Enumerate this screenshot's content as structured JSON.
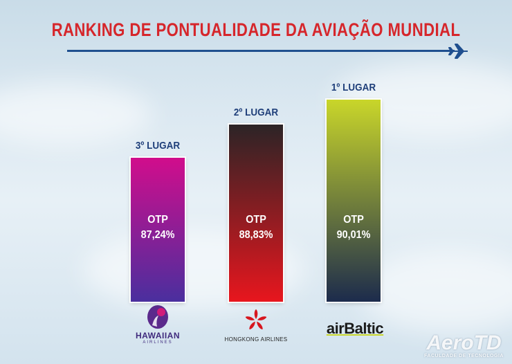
{
  "title": "RANKING DE PONTUALIDADE DA AVIAÇÃO MUNDIAL",
  "chart_data": {
    "type": "bar",
    "categories": [
      "Hawaiian Airlines",
      "Hongkong Airlines",
      "airBaltic"
    ],
    "values": [
      87.24,
      88.83,
      90.01
    ],
    "ranks": [
      "3º LUGAR",
      "2º LUGAR",
      "1º LUGAR"
    ],
    "metric_label": "OTP",
    "value_labels": [
      "87,24%",
      "88,83%",
      "90,01%"
    ],
    "bar_colors": [
      [
        "#d10d8c",
        "#4a2f9e"
      ],
      [
        "#2c2426",
        "#e8161e"
      ],
      [
        "#c9d62a",
        "#1c2b4c"
      ]
    ]
  },
  "logos": {
    "hawaiian": {
      "name": "HAWAIIAN",
      "sub": "AIRLINES",
      "icon": "hawaiian-pualani-icon"
    },
    "hongkong": {
      "name": "HONGKONG AIRLINES",
      "icon": "bauhinia-flower-icon"
    },
    "airbaltic": {
      "name": "airBaltic"
    }
  },
  "watermark": {
    "name": "AeroTD",
    "sub": "FACULDADE DE TECNOLOGIA"
  }
}
